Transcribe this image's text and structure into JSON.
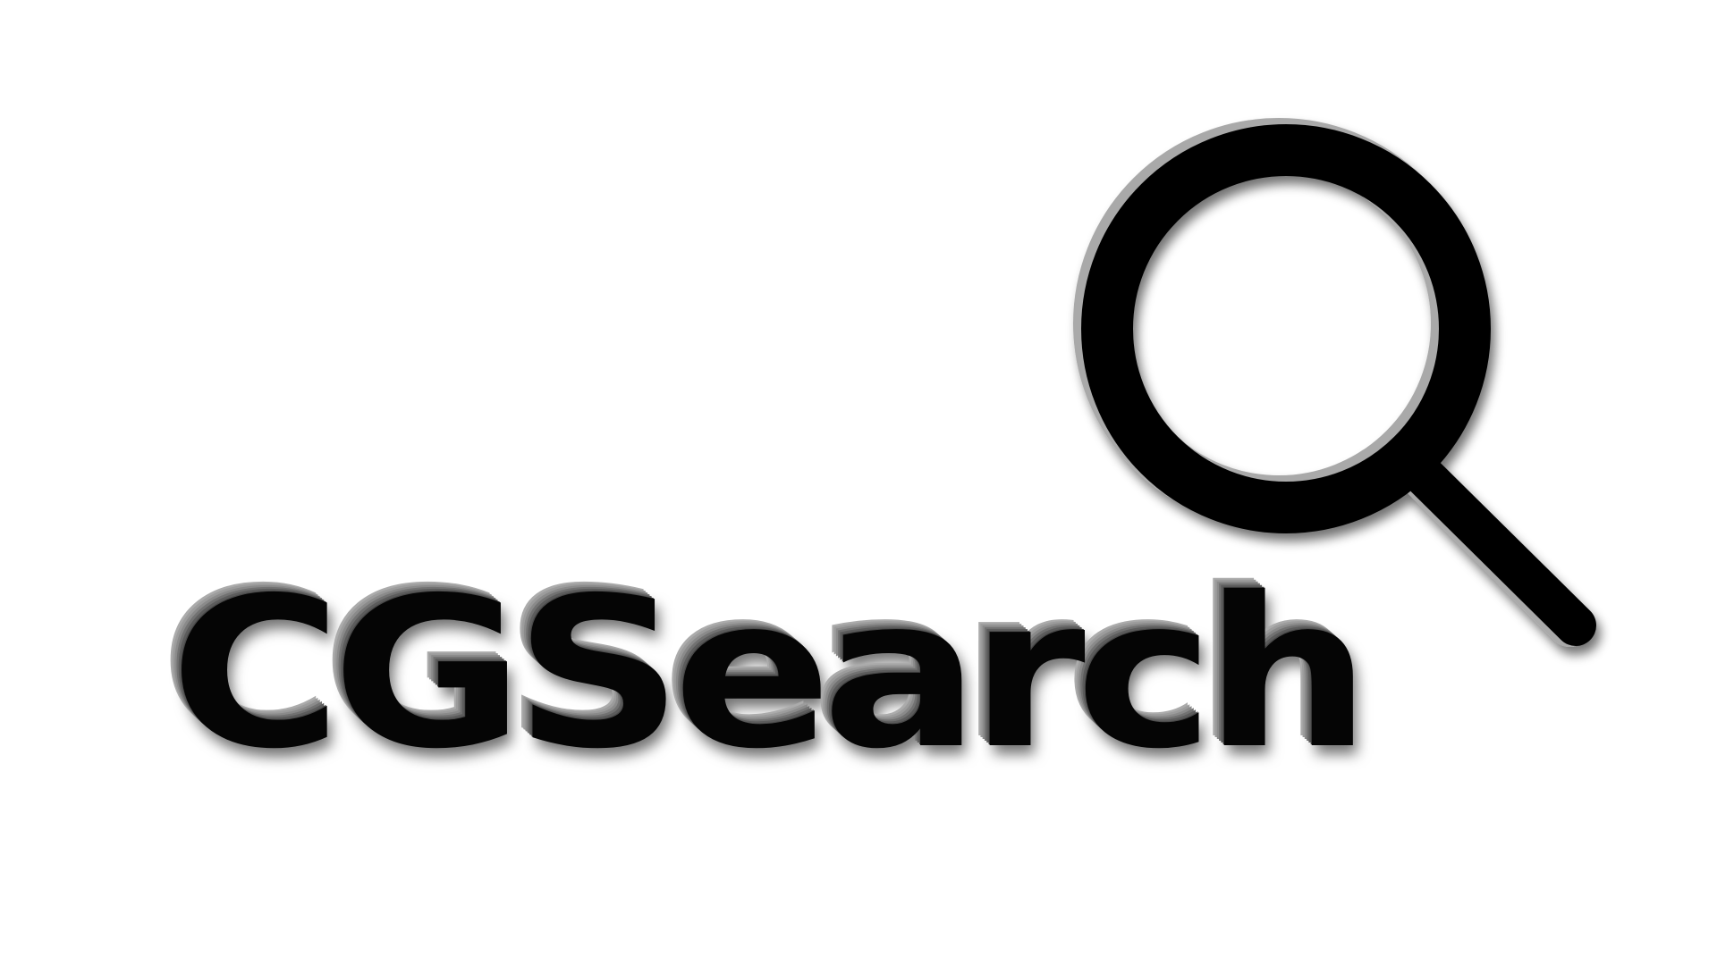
{
  "logo": {
    "wordmark": "CGSearch",
    "icon": "magnifying-glass-icon"
  },
  "colors": {
    "background": "#ffffff",
    "foreground": "#050505",
    "bevel_shadow": "#8a8a8a"
  }
}
